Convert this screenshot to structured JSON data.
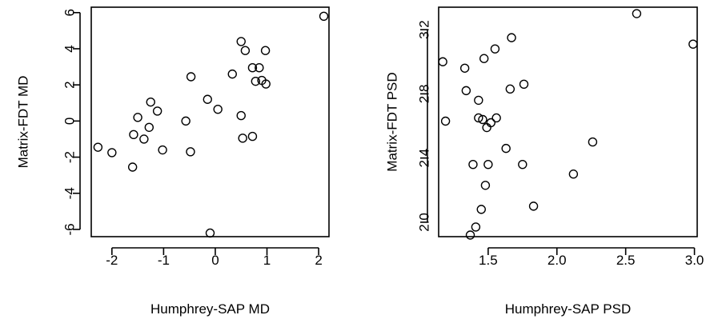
{
  "chart_data": [
    {
      "type": "scatter",
      "xlabel": "Humphrey-SAP MD",
      "ylabel": "Matrix-FDT MD",
      "xlim": [
        -2.4,
        2.2
      ],
      "ylim": [
        -6.4,
        6.3
      ],
      "xticks": [
        -2,
        -1,
        0,
        1,
        2
      ],
      "xtick_labels": [
        "-2",
        "-1",
        "0",
        "1",
        "2"
      ],
      "yticks": [
        -6,
        -4,
        -2,
        0,
        2,
        4,
        6
      ],
      "ytick_labels": [
        "-6",
        "-4",
        "-2",
        "0",
        "2",
        "4",
        "6"
      ],
      "grid": false,
      "points": [
        {
          "x": 2.1,
          "y": 5.8
        },
        {
          "x": 0.5,
          "y": 4.4
        },
        {
          "x": 0.58,
          "y": 3.9
        },
        {
          "x": 0.97,
          "y": 3.9
        },
        {
          "x": 0.72,
          "y": 2.95
        },
        {
          "x": 0.85,
          "y": 2.95
        },
        {
          "x": 0.33,
          "y": 2.6
        },
        {
          "x": -0.47,
          "y": 2.45
        },
        {
          "x": 0.78,
          "y": 2.2
        },
        {
          "x": 0.9,
          "y": 2.25
        },
        {
          "x": 0.98,
          "y": 2.05
        },
        {
          "x": -0.15,
          "y": 1.2
        },
        {
          "x": -1.25,
          "y": 1.05
        },
        {
          "x": -1.12,
          "y": 0.55
        },
        {
          "x": 0.05,
          "y": 0.65
        },
        {
          "x": 0.5,
          "y": 0.3
        },
        {
          "x": -1.5,
          "y": 0.2
        },
        {
          "x": -0.57,
          "y": 0.0
        },
        {
          "x": -1.28,
          "y": -0.35
        },
        {
          "x": -1.58,
          "y": -0.75
        },
        {
          "x": -1.38,
          "y": -1.0
        },
        {
          "x": 0.53,
          "y": -0.95
        },
        {
          "x": 0.72,
          "y": -0.85
        },
        {
          "x": -2.27,
          "y": -1.45
        },
        {
          "x": -1.02,
          "y": -1.6
        },
        {
          "x": -0.48,
          "y": -1.7
        },
        {
          "x": -2.0,
          "y": -1.75
        },
        {
          "x": -1.6,
          "y": -2.55
        },
        {
          "x": -0.1,
          "y": -6.2
        }
      ]
    },
    {
      "type": "scatter",
      "xlabel": "Humphrey-SAP PSD",
      "ylabel": "Matrix-FDT PSD",
      "xlim": [
        1.14,
        3.02
      ],
      "ylim": [
        1.91,
        3.34
      ],
      "xticks": [
        1.5,
        2.0,
        2.5,
        3.0
      ],
      "xtick_labels": [
        "1.5",
        "2.0",
        "2.5",
        "3.0"
      ],
      "yticks": [
        2.0,
        2.4,
        2.8,
        3.2
      ],
      "ytick_labels": [
        "2.0",
        "2.4",
        "2.8",
        "3.2"
      ],
      "grid": false,
      "points": [
        {
          "x": 2.58,
          "y": 3.3
        },
        {
          "x": 2.99,
          "y": 3.11
        },
        {
          "x": 1.67,
          "y": 3.15
        },
        {
          "x": 1.55,
          "y": 3.08
        },
        {
          "x": 1.47,
          "y": 3.02
        },
        {
          "x": 1.17,
          "y": 3.0
        },
        {
          "x": 1.33,
          "y": 2.96
        },
        {
          "x": 1.76,
          "y": 2.86
        },
        {
          "x": 1.66,
          "y": 2.83
        },
        {
          "x": 1.34,
          "y": 2.82
        },
        {
          "x": 1.43,
          "y": 2.76
        },
        {
          "x": 1.43,
          "y": 2.65
        },
        {
          "x": 1.56,
          "y": 2.65
        },
        {
          "x": 1.46,
          "y": 2.64
        },
        {
          "x": 1.52,
          "y": 2.62
        },
        {
          "x": 1.19,
          "y": 2.63
        },
        {
          "x": 1.49,
          "y": 2.59
        },
        {
          "x": 1.63,
          "y": 2.46
        },
        {
          "x": 2.26,
          "y": 2.5
        },
        {
          "x": 1.39,
          "y": 2.36
        },
        {
          "x": 1.5,
          "y": 2.36
        },
        {
          "x": 1.75,
          "y": 2.36
        },
        {
          "x": 2.12,
          "y": 2.3
        },
        {
          "x": 1.48,
          "y": 2.23
        },
        {
          "x": 1.83,
          "y": 2.1
        },
        {
          "x": 1.45,
          "y": 2.08
        },
        {
          "x": 1.41,
          "y": 1.97
        },
        {
          "x": 1.37,
          "y": 1.92
        }
      ]
    }
  ]
}
